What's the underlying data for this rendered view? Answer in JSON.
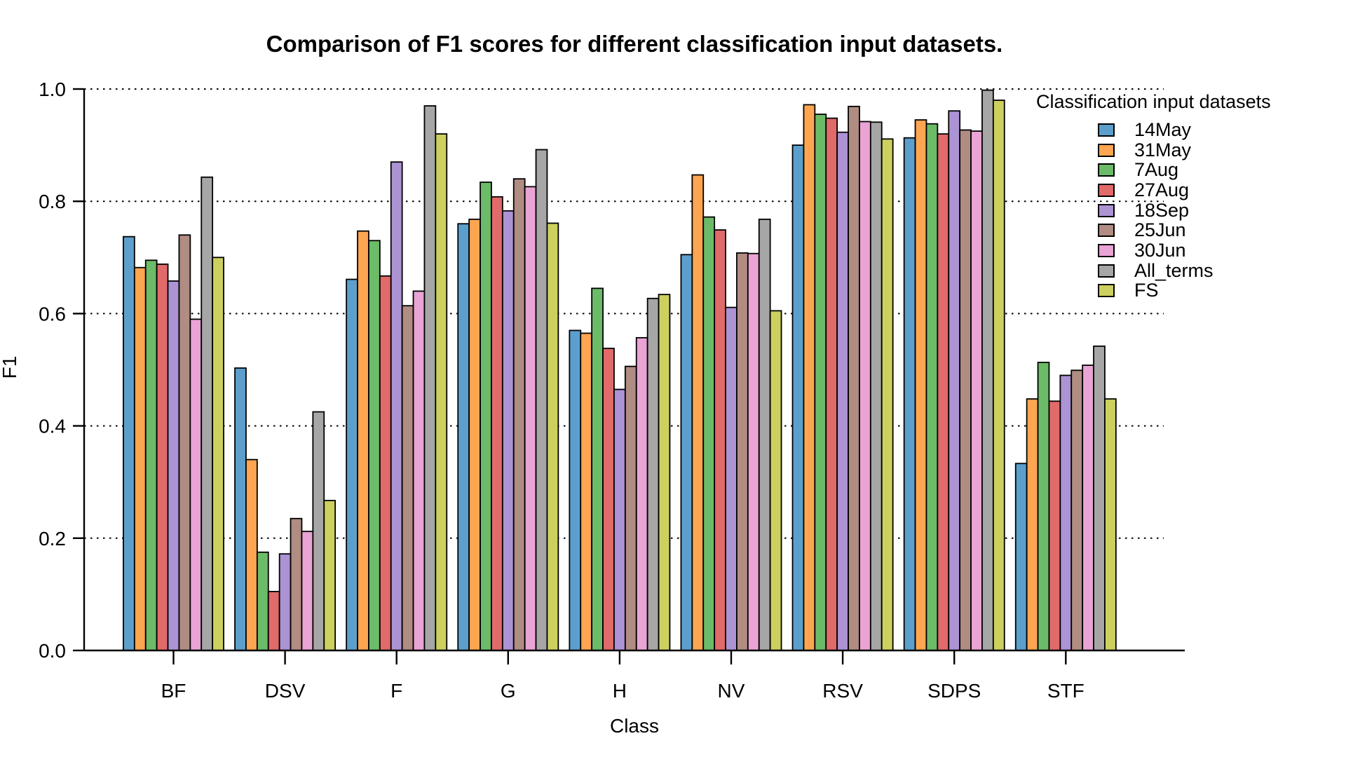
{
  "chart_data": {
    "type": "bar",
    "title": "Comparison of F1 scores for different classification input datasets.",
    "xlabel": "Class",
    "ylabel": "F1",
    "ylim": [
      0.0,
      1.0
    ],
    "yticks": [
      0.0,
      0.2,
      0.4,
      0.6,
      0.8,
      1.0
    ],
    "grid": "horizontal-dotted",
    "legend_title": "Classification input datasets",
    "legend_position": "top-right",
    "categories": [
      "BF",
      "DSV",
      "F",
      "G",
      "H",
      "NV",
      "RSV",
      "SDPS",
      "STF"
    ],
    "series": [
      {
        "name": "14May",
        "color": "#5C9FCC",
        "values": [
          0.737,
          0.503,
          0.661,
          0.76,
          0.57,
          0.705,
          0.9,
          0.913,
          0.333
        ]
      },
      {
        "name": "31May",
        "color": "#FDA551",
        "values": [
          0.682,
          0.34,
          0.747,
          0.768,
          0.565,
          0.847,
          0.972,
          0.945,
          0.448
        ]
      },
      {
        "name": "7Aug",
        "color": "#6CBB68",
        "values": [
          0.695,
          0.175,
          0.73,
          0.834,
          0.645,
          0.772,
          0.955,
          0.938,
          0.513
        ]
      },
      {
        "name": "27Aug",
        "color": "#E16A6A",
        "values": [
          0.688,
          0.105,
          0.667,
          0.808,
          0.538,
          0.749,
          0.948,
          0.92,
          0.444
        ]
      },
      {
        "name": "18Sep",
        "color": "#AC93D3",
        "values": [
          0.658,
          0.172,
          0.87,
          0.783,
          0.465,
          0.611,
          0.923,
          0.961,
          0.49
        ]
      },
      {
        "name": "25Jun",
        "color": "#B08C82",
        "values": [
          0.74,
          0.235,
          0.614,
          0.84,
          0.506,
          0.708,
          0.969,
          0.927,
          0.499
        ]
      },
      {
        "name": "30Jun",
        "color": "#E9A3D4",
        "values": [
          0.59,
          0.212,
          0.64,
          0.826,
          0.557,
          0.707,
          0.942,
          0.925,
          0.508
        ]
      },
      {
        "name": "All_terms",
        "color": "#A6A6A6",
        "values": [
          0.843,
          0.425,
          0.97,
          0.892,
          0.627,
          0.768,
          0.941,
          0.998,
          0.542
        ]
      },
      {
        "name": "FS",
        "color": "#CDD05E",
        "values": [
          0.7,
          0.267,
          0.92,
          0.761,
          0.634,
          0.605,
          0.911,
          0.98,
          0.448
        ]
      }
    ]
  }
}
